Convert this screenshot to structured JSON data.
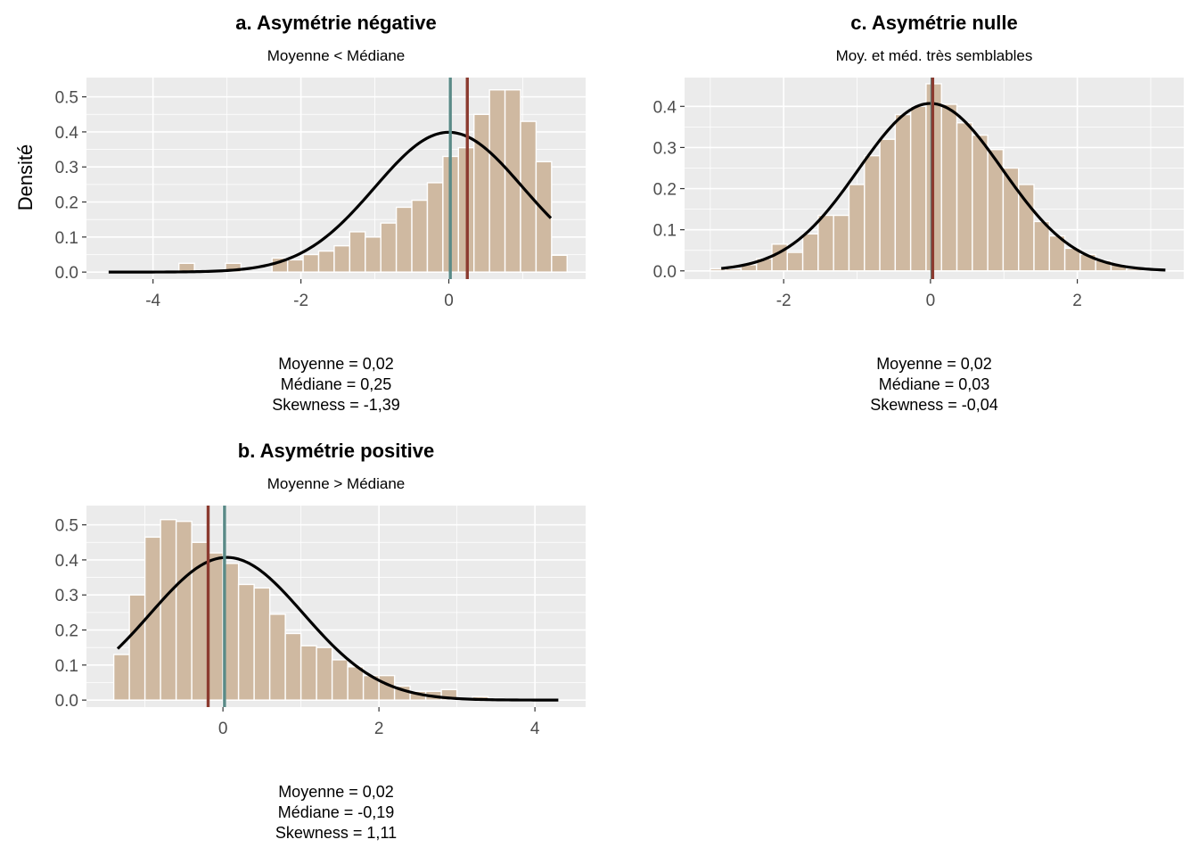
{
  "colors": {
    "panel_bg": "#ebebeb",
    "grid": "#ffffff",
    "bar_fill": "#cfb9a1",
    "bar_stroke": "#ffffff",
    "curve": "#000000",
    "mean_line": "#5a8a87",
    "median_line": "#8b3a2f",
    "tick_text": "#4d4d4d"
  },
  "y_axis_label": "Densité",
  "chart_data": [
    {
      "id": "a",
      "type": "histogram",
      "title": "a. Asymétrie négative",
      "subtitle": "Moyenne < Médiane",
      "xlim": [
        -4.9,
        1.85
      ],
      "ylim": [
        -0.02,
        0.555
      ],
      "x_ticks": [
        -4,
        -2,
        0
      ],
      "y_ticks": [
        0.0,
        0.1,
        0.2,
        0.3,
        0.4,
        0.5
      ],
      "y_tick_labels": [
        "0.0",
        "0.1",
        "0.2",
        "0.3",
        "0.4",
        "0.5"
      ],
      "x_tick_labels": [
        "-4",
        "-2",
        "0"
      ],
      "bin_width": 0.21,
      "bins_x": [
        -3.65,
        -3.02,
        -2.39,
        -2.18,
        -1.97,
        -1.76,
        -1.55,
        -1.34,
        -1.13,
        -0.92,
        -0.71,
        -0.5,
        -0.29,
        -0.08,
        0.13,
        0.34,
        0.55,
        0.76,
        0.97,
        1.18,
        1.39
      ],
      "bins_y": [
        0.025,
        0.025,
        0.04,
        0.035,
        0.05,
        0.06,
        0.075,
        0.115,
        0.1,
        0.14,
        0.185,
        0.205,
        0.255,
        0.33,
        0.355,
        0.45,
        0.52,
        0.52,
        0.43,
        0.315,
        0.048
      ],
      "curve": {
        "mean": 0.0,
        "sd": 1.0,
        "x_from": -4.6,
        "x_to": 1.38
      },
      "mean": 0.02,
      "median": 0.25,
      "stats": [
        "Moyenne = 0,02",
        "Médiane = 0,25",
        "Skewness = -1,39"
      ]
    },
    {
      "id": "c",
      "type": "histogram",
      "title": "c. Asymétrie nulle",
      "subtitle": "Moy. et méd. très semblables",
      "xlim": [
        -3.35,
        3.45
      ],
      "ylim": [
        -0.02,
        0.47
      ],
      "x_ticks": [
        -2,
        0,
        2
      ],
      "y_ticks": [
        0.0,
        0.1,
        0.2,
        0.3,
        0.4
      ],
      "y_tick_labels": [
        "0.0",
        "0.1",
        "0.2",
        "0.3",
        "0.4"
      ],
      "x_tick_labels": [
        "-2",
        "0",
        "2"
      ],
      "bin_width": 0.21,
      "bins_x": [
        -3.0,
        -2.79,
        -2.58,
        -2.37,
        -2.16,
        -1.95,
        -1.74,
        -1.53,
        -1.32,
        -1.11,
        -0.9,
        -0.69,
        -0.48,
        -0.27,
        -0.06,
        0.15,
        0.36,
        0.57,
        0.78,
        0.99,
        1.2,
        1.41,
        1.62,
        1.83,
        2.04,
        2.25,
        2.46,
        2.67
      ],
      "bins_y": [
        0.005,
        0.005,
        0.015,
        0.03,
        0.065,
        0.045,
        0.09,
        0.135,
        0.135,
        0.21,
        0.28,
        0.32,
        0.38,
        0.4,
        0.455,
        0.405,
        0.36,
        0.33,
        0.295,
        0.25,
        0.21,
        0.12,
        0.085,
        0.055,
        0.04,
        0.025,
        0.015,
        0.005
      ],
      "curve": {
        "mean": 0.0,
        "sd": 0.98,
        "x_from": -2.85,
        "x_to": 3.2
      },
      "mean": 0.02,
      "median": 0.03,
      "stats": [
        "Moyenne = 0,02",
        "Médiane = 0,03",
        "Skewness = -0,04"
      ]
    },
    {
      "id": "b",
      "type": "histogram",
      "title": "b. Asymétrie positive",
      "subtitle": "Moyenne > Médiane",
      "xlim": [
        -1.75,
        4.65
      ],
      "ylim": [
        -0.02,
        0.555
      ],
      "x_ticks": [
        0,
        2,
        4
      ],
      "y_ticks": [
        0.0,
        0.1,
        0.2,
        0.3,
        0.4,
        0.5
      ],
      "y_tick_labels": [
        "0.0",
        "0.1",
        "0.2",
        "0.3",
        "0.4",
        "0.5"
      ],
      "x_tick_labels": [
        "0",
        "2",
        "4"
      ],
      "bin_width": 0.2,
      "bins_x": [
        -1.4,
        -1.2,
        -1.0,
        -0.8,
        -0.6,
        -0.4,
        -0.2,
        0.0,
        0.2,
        0.4,
        0.6,
        0.8,
        1.0,
        1.2,
        1.4,
        1.6,
        1.8,
        2.0,
        2.2,
        2.4,
        2.6,
        2.8,
        3.0,
        3.2,
        3.4
      ],
      "bins_y": [
        0.13,
        0.3,
        0.465,
        0.515,
        0.51,
        0.45,
        0.42,
        0.39,
        0.33,
        0.32,
        0.245,
        0.19,
        0.155,
        0.15,
        0.115,
        0.095,
        0.07,
        0.07,
        0.04,
        0.025,
        0.025,
        0.03,
        0.005,
        0.01,
        0.005
      ],
      "curve": {
        "mean": 0.05,
        "sd": 0.98,
        "x_from": -1.35,
        "x_to": 4.3
      },
      "mean": 0.02,
      "median": -0.19,
      "stats": [
        "Moyenne = 0,02",
        "Médiane = -0,19",
        "Skewness = 1,11"
      ]
    }
  ]
}
